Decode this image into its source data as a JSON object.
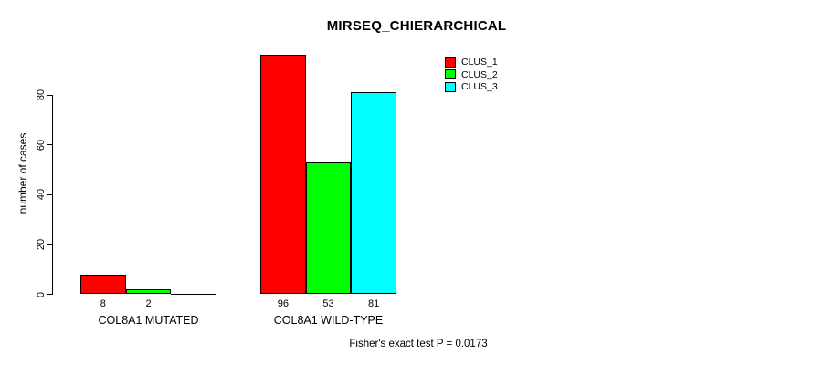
{
  "title": "MIRSEQ_CHIERARCHICAL",
  "footer": "Fisher's exact test P = 0.0173",
  "colors": {
    "background": "#ffffff",
    "axis": "#000000",
    "bar_border": "#000000",
    "clus_1": "#ff0000",
    "clus_2": "#00ff00",
    "clus_3": "#00ffff"
  },
  "legend": {
    "items": [
      {
        "label": "CLUS_1",
        "color": "#ff0000",
        "swatch_icon": "legend-swatch-red"
      },
      {
        "label": "CLUS_2",
        "color": "#00ff00",
        "swatch_icon": "legend-swatch-green"
      },
      {
        "label": "CLUS_3",
        "color": "#00ffff",
        "swatch_icon": "legend-swatch-cyan"
      }
    ]
  },
  "chart_data": {
    "type": "bar",
    "title": "MIRSEQ_CHIERARCHICAL",
    "xlabel": "",
    "ylabel": "number of cases",
    "categories": [
      "COL8A1 MUTATED",
      "COL8A1 WILD-TYPE"
    ],
    "series": [
      {
        "name": "CLUS_1",
        "color": "#ff0000",
        "values": [
          8,
          96
        ]
      },
      {
        "name": "CLUS_2",
        "color": "#00ff00",
        "values": [
          2,
          53
        ]
      },
      {
        "name": "CLUS_3",
        "color": "#00ffff",
        "values": [
          0,
          81
        ]
      }
    ],
    "bar_labels": [
      [
        "8",
        "2",
        ""
      ],
      [
        "96",
        "53",
        "81"
      ]
    ],
    "yticks": [
      0,
      20,
      40,
      60,
      80
    ],
    "ytick_labels": [
      "0",
      "20",
      "40",
      "60",
      "80"
    ],
    "ylim": [
      0,
      80
    ],
    "grid": false,
    "legend_position": "topright",
    "annotation": "Fisher's exact test P = 0.0173"
  }
}
